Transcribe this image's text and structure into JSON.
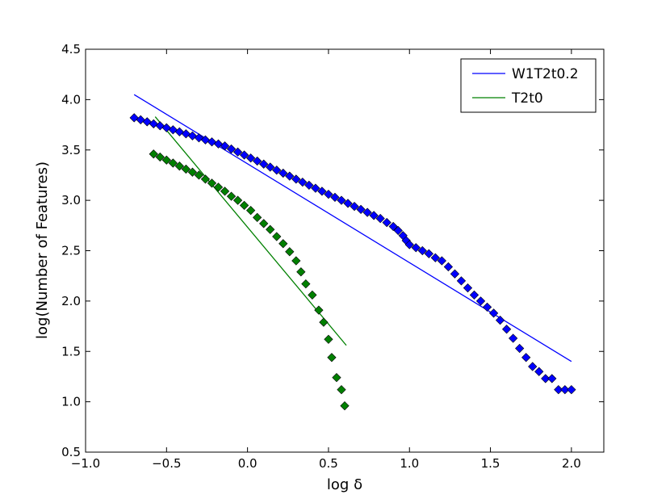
{
  "chart_data": {
    "type": "scatter",
    "xlabel": "log δ",
    "ylabel": "log(Number of Features)",
    "xlim": [
      -1.0,
      2.2
    ],
    "ylim": [
      0.5,
      4.5
    ],
    "xticks": [
      -1.0,
      -0.5,
      0.0,
      0.5,
      1.0,
      1.5,
      2.0
    ],
    "xtick_labels": [
      "−1.0",
      "−0.5",
      "0.0",
      "0.5",
      "1.0",
      "1.5",
      "2.0"
    ],
    "yticks": [
      0.5,
      1.0,
      1.5,
      2.0,
      2.5,
      3.0,
      3.5,
      4.0,
      4.5
    ],
    "ytick_labels": [
      "0.5",
      "1.0",
      "1.5",
      "2.0",
      "2.5",
      "3.0",
      "3.5",
      "4.0",
      "4.5"
    ],
    "legend_position": "top-right",
    "series": [
      {
        "name": "W1T2t0.2",
        "line_color": "#0000ff",
        "marker_color": "#0000ff",
        "fit_line": {
          "x": [
            -0.7,
            2.0
          ],
          "y": [
            4.05,
            1.4
          ]
        },
        "points": [
          [
            -0.7,
            3.82
          ],
          [
            -0.66,
            3.8
          ],
          [
            -0.62,
            3.78
          ],
          [
            -0.58,
            3.76
          ],
          [
            -0.54,
            3.74
          ],
          [
            -0.5,
            3.72
          ],
          [
            -0.46,
            3.7
          ],
          [
            -0.42,
            3.68
          ],
          [
            -0.38,
            3.66
          ],
          [
            -0.34,
            3.64
          ],
          [
            -0.3,
            3.62
          ],
          [
            -0.26,
            3.6
          ],
          [
            -0.22,
            3.58
          ],
          [
            -0.18,
            3.56
          ],
          [
            -0.14,
            3.54
          ],
          [
            -0.1,
            3.51
          ],
          [
            -0.06,
            3.48
          ],
          [
            -0.02,
            3.45
          ],
          [
            0.02,
            3.42
          ],
          [
            0.06,
            3.39
          ],
          [
            0.1,
            3.36
          ],
          [
            0.14,
            3.33
          ],
          [
            0.18,
            3.3
          ],
          [
            0.22,
            3.27
          ],
          [
            0.26,
            3.24
          ],
          [
            0.3,
            3.21
          ],
          [
            0.34,
            3.18
          ],
          [
            0.38,
            3.15
          ],
          [
            0.42,
            3.12
          ],
          [
            0.46,
            3.09
          ],
          [
            0.5,
            3.06
          ],
          [
            0.54,
            3.03
          ],
          [
            0.58,
            3.0
          ],
          [
            0.62,
            2.97
          ],
          [
            0.66,
            2.94
          ],
          [
            0.7,
            2.91
          ],
          [
            0.74,
            2.88
          ],
          [
            0.78,
            2.85
          ],
          [
            0.82,
            2.82
          ],
          [
            0.86,
            2.78
          ],
          [
            0.9,
            2.74
          ],
          [
            0.93,
            2.7
          ],
          [
            0.96,
            2.65
          ],
          [
            0.98,
            2.6
          ],
          [
            1.0,
            2.56
          ],
          [
            1.04,
            2.53
          ],
          [
            1.08,
            2.5
          ],
          [
            1.12,
            2.47
          ],
          [
            1.16,
            2.43
          ],
          [
            1.2,
            2.4
          ],
          [
            1.24,
            2.34
          ],
          [
            1.28,
            2.27
          ],
          [
            1.32,
            2.2
          ],
          [
            1.36,
            2.13
          ],
          [
            1.4,
            2.06
          ],
          [
            1.44,
            2.0
          ],
          [
            1.48,
            1.94
          ],
          [
            1.52,
            1.88
          ],
          [
            1.56,
            1.81
          ],
          [
            1.6,
            1.72
          ],
          [
            1.64,
            1.63
          ],
          [
            1.68,
            1.53
          ],
          [
            1.72,
            1.44
          ],
          [
            1.76,
            1.35
          ],
          [
            1.8,
            1.3
          ],
          [
            1.84,
            1.23
          ],
          [
            1.88,
            1.23
          ],
          [
            1.92,
            1.12
          ],
          [
            1.96,
            1.12
          ],
          [
            2.0,
            1.12
          ]
        ]
      },
      {
        "name": "T2t0",
        "line_color": "#008000",
        "marker_color": "#008000",
        "fit_line": {
          "x": [
            -0.57,
            0.61
          ],
          "y": [
            3.83,
            1.56
          ]
        },
        "points": [
          [
            -0.58,
            3.46
          ],
          [
            -0.54,
            3.43
          ],
          [
            -0.5,
            3.4
          ],
          [
            -0.46,
            3.37
          ],
          [
            -0.42,
            3.34
          ],
          [
            -0.38,
            3.31
          ],
          [
            -0.34,
            3.28
          ],
          [
            -0.3,
            3.25
          ],
          [
            -0.26,
            3.21
          ],
          [
            -0.22,
            3.17
          ],
          [
            -0.18,
            3.13
          ],
          [
            -0.14,
            3.09
          ],
          [
            -0.1,
            3.04
          ],
          [
            -0.06,
            3.0
          ],
          [
            -0.02,
            2.95
          ],
          [
            0.02,
            2.9
          ],
          [
            0.06,
            2.83
          ],
          [
            0.1,
            2.77
          ],
          [
            0.14,
            2.71
          ],
          [
            0.18,
            2.64
          ],
          [
            0.22,
            2.57
          ],
          [
            0.26,
            2.49
          ],
          [
            0.3,
            2.4
          ],
          [
            0.33,
            2.29
          ],
          [
            0.36,
            2.17
          ],
          [
            0.4,
            2.06
          ],
          [
            0.44,
            1.91
          ],
          [
            0.47,
            1.79
          ],
          [
            0.5,
            1.62
          ],
          [
            0.52,
            1.44
          ],
          [
            0.55,
            1.24
          ],
          [
            0.58,
            1.12
          ],
          [
            0.6,
            0.96
          ]
        ]
      }
    ]
  }
}
